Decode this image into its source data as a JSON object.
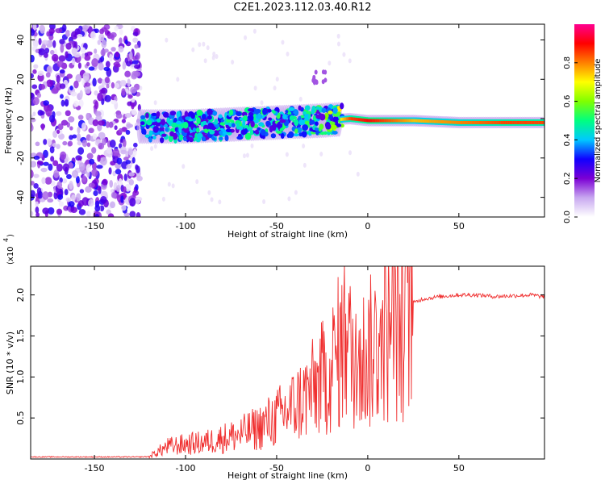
{
  "title": "C2E1.2023.112.03.40.R12",
  "chart_data": [
    {
      "type": "heatmap",
      "title": "C2E1.2023.112.03.40.R12",
      "xlabel": "Height of straight line (km)",
      "ylabel": "Frequency (Hz)",
      "xlim": [
        -185,
        97
      ],
      "ylim": [
        -50,
        48
      ],
      "xticks": [
        -150,
        -100,
        -50,
        0,
        50
      ],
      "yticks": [
        -40,
        -20,
        0,
        20,
        40
      ],
      "colorbar": {
        "label": "Normalized spectral amplitude",
        "range": [
          0.0,
          1.0
        ],
        "ticks": [
          0.0,
          0.2,
          0.4,
          0.6,
          0.8
        ],
        "tick_labels": [
          "0.0",
          "0.2",
          "0.4",
          "0.6",
          "0.8"
        ],
        "colormap": [
          "#ffffff",
          "#c8a8f0",
          "#7b00d4",
          "#1000ff",
          "#00c8ff",
          "#00ff80",
          "#80ff00",
          "#ffff00",
          "#ff8000",
          "#ff0000",
          "#ff0090"
        ]
      },
      "signal_band": {
        "x": [
          -125,
          -100,
          -75,
          -50,
          -25,
          -10,
          0,
          25,
          50,
          75,
          95
        ],
        "center_freq": [
          -4,
          -4,
          -3,
          -2,
          -1,
          0,
          -1,
          -1,
          -2,
          -2,
          -2
        ],
        "peak_amplitude": [
          0.35,
          0.35,
          0.4,
          0.4,
          0.45,
          0.85,
          0.9,
          0.75,
          0.8,
          0.85,
          0.85
        ]
      },
      "noise_region": {
        "x_range": [
          -185,
          -125
        ],
        "freq_range": [
          -50,
          48
        ],
        "amplitude": 0.15
      }
    },
    {
      "type": "line",
      "xlabel": "Height of straight line (km)",
      "ylabel": "SNR (10 * v/v)",
      "y_exponent_label": "(x10",
      "y_exponent_power": "4",
      "y_exponent_close": ")",
      "xlim": [
        -185,
        97
      ],
      "ylim": [
        0,
        23500
      ],
      "xticks": [
        -150,
        -100,
        -50,
        0,
        50
      ],
      "yticks": [
        5000,
        10000,
        15000,
        20000
      ],
      "ytick_labels": [
        "0.5",
        "1.0",
        "1.5",
        "2.0"
      ],
      "color": "#f03030",
      "series": [
        {
          "x": [
            -185,
            -150,
            -125,
            -120,
            -110,
            -100,
            -90,
            -80,
            -70,
            -60,
            -50,
            -40,
            -30,
            -20,
            -15,
            -12,
            -10,
            -5,
            0,
            5,
            10,
            15,
            20,
            25,
            30,
            40,
            50,
            60,
            70,
            80,
            90,
            95
          ],
          "y": [
            250,
            250,
            250,
            300,
            1500,
            1800,
            2000,
            2500,
            3000,
            3800,
            5000,
            6500,
            8500,
            11000,
            13500,
            15000,
            13000,
            12000,
            12500,
            14000,
            15500,
            16000,
            17000,
            19000,
            19500,
            19800,
            20000,
            20000,
            19800,
            19900,
            20000,
            19800
          ]
        }
      ]
    }
  ]
}
